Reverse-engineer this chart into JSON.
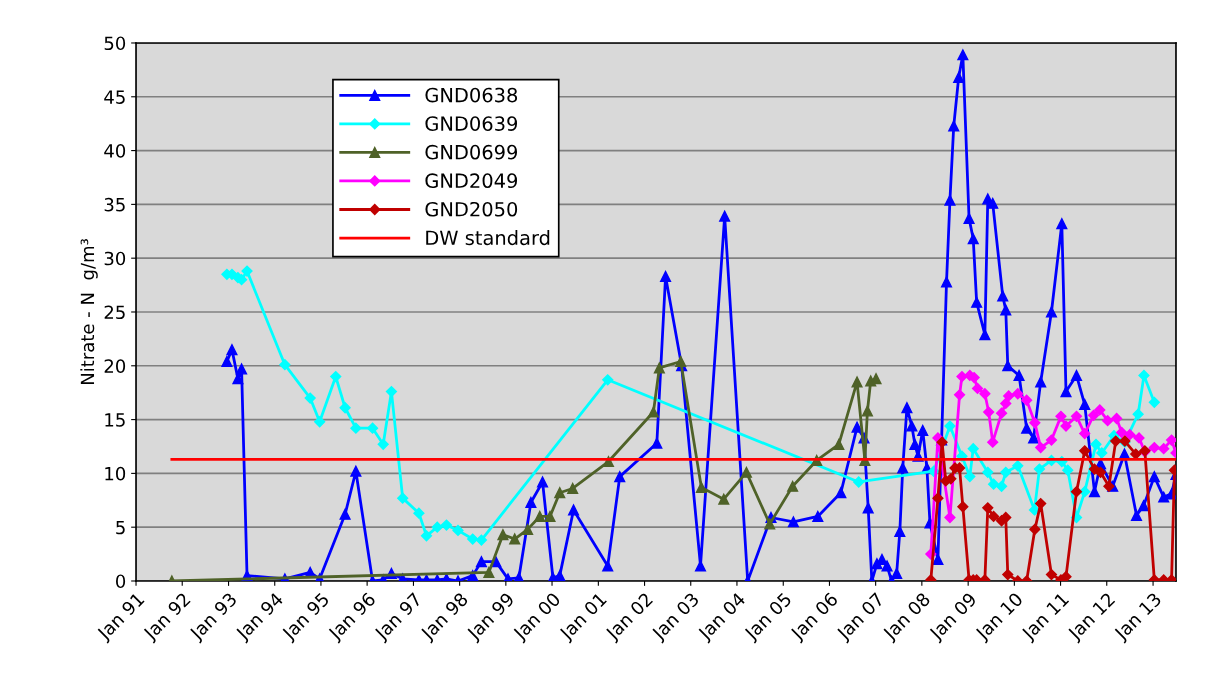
{
  "chart_data": {
    "type": "line",
    "ylabel": "Nitrate - N  g/m³",
    "xlim": [
      "1991-01-01",
      "2013-07-01"
    ],
    "ylim": [
      0,
      50
    ],
    "yticks": [
      0,
      5,
      10,
      15,
      20,
      25,
      30,
      35,
      40,
      45,
      50
    ],
    "xticks": [
      {
        "value": "1991-01-01",
        "label": "Jan 91"
      },
      {
        "value": "1992-01-01",
        "label": "Jan 92"
      },
      {
        "value": "1993-01-01",
        "label": "Jan 93"
      },
      {
        "value": "1994-01-01",
        "label": "Jan 94"
      },
      {
        "value": "1995-01-01",
        "label": "Jan 95"
      },
      {
        "value": "1996-01-01",
        "label": "Jan 96"
      },
      {
        "value": "1997-01-01",
        "label": "Jan 97"
      },
      {
        "value": "1998-01-01",
        "label": "Jan 98"
      },
      {
        "value": "1999-01-01",
        "label": "Jan 99"
      },
      {
        "value": "2000-01-01",
        "label": "Jan 00"
      },
      {
        "value": "2001-01-01",
        "label": "Jan 01"
      },
      {
        "value": "2002-01-01",
        "label": "Jan 02"
      },
      {
        "value": "2003-01-01",
        "label": "Jan 03"
      },
      {
        "value": "2004-01-01",
        "label": "Jan 04"
      },
      {
        "value": "2005-01-01",
        "label": "Jan 05"
      },
      {
        "value": "2006-01-01",
        "label": "Jan 06"
      },
      {
        "value": "2007-01-01",
        "label": "Jan 07"
      },
      {
        "value": "2008-01-01",
        "label": "Jan 08"
      },
      {
        "value": "2009-01-01",
        "label": "Jan 09"
      },
      {
        "value": "2010-01-01",
        "label": "Jan 10"
      },
      {
        "value": "2011-01-01",
        "label": "Jan 11"
      },
      {
        "value": "2012-01-01",
        "label": "Jan 12"
      },
      {
        "value": "2013-01-01",
        "label": "Jan 13"
      }
    ],
    "grid": "y",
    "legend": "top left",
    "line_style": "solid",
    "series": [
      {
        "name": "GND0638",
        "color": "#0000ff",
        "marker": "triangle",
        "x": [
          "1992-12-19",
          "1993-01-28",
          "1993-03-16",
          "1993-04-14",
          "1993-05-27",
          "1994-03-22",
          "1994-10-08",
          "1994-12-22",
          "1995-07-11",
          "1995-10-04",
          "1996-02-13",
          "1996-05-07",
          "1996-07-11",
          "1996-10-08",
          "1997-02-13",
          "1997-04-14",
          "1997-07-08",
          "1997-09-19",
          "1997-12-19",
          "1998-04-14",
          "1998-06-22",
          "1998-10-14",
          "1999-01-18",
          "1999-04-14",
          "1999-07-18",
          "1999-10-18",
          "2000-01-08",
          "2000-03-02",
          "2000-06-19",
          "2001-03-16",
          "2001-06-19",
          "2002-04-08",
          "2002-06-16",
          "2002-10-21",
          "2003-03-19",
          "2003-09-26",
          "2004-03-26",
          "2004-09-26",
          "2005-03-22",
          "2005-10-01",
          "2006-04-01",
          "2006-08-07",
          "2006-10-01",
          "2006-11-03",
          "2006-12-02",
          "2007-01-11",
          "2007-02-20",
          "2007-04-01",
          "2007-05-07",
          "2007-06-16",
          "2007-07-11",
          "2007-08-03",
          "2007-09-05",
          "2007-10-14",
          "2007-11-07",
          "2007-12-02",
          "2008-01-08",
          "2008-02-10",
          "2008-03-05",
          "2008-05-07",
          "2008-06-05",
          "2008-07-14",
          "2008-08-10",
          "2008-09-09",
          "2008-10-18",
          "2008-11-20",
          "2009-01-08",
          "2009-02-10",
          "2009-03-09",
          "2009-05-13",
          "2009-06-05",
          "2009-07-14",
          "2009-10-01",
          "2009-10-25",
          "2009-11-10",
          "2010-02-07",
          "2010-04-08",
          "2010-06-02",
          "2010-07-28",
          "2010-10-21",
          "2011-01-11",
          "2011-02-13",
          "2011-05-07",
          "2011-07-11",
          "2011-09-26",
          "2011-11-13",
          "2012-02-17",
          "2012-05-20",
          "2012-08-23",
          "2012-10-18",
          "2013-01-11",
          "2013-03-26",
          "2013-05-27",
          "2013-07-01"
        ],
        "values": [
          20.4,
          21.5,
          18.8,
          19.7,
          0.5,
          0.2,
          0.8,
          0.2,
          6.2,
          10.2,
          0,
          0.1,
          0.7,
          0.2,
          0.1,
          0.1,
          0.1,
          0.2,
          0,
          0.5,
          1.8,
          1.8,
          0.2,
          0.3,
          7.3,
          9.2,
          0.3,
          0.5,
          6.6,
          1.4,
          9.7,
          12.8,
          28.3,
          20.0,
          1.4,
          33.9,
          0,
          5.9,
          5.5,
          6.0,
          8.2,
          14.3,
          13.3,
          6.8,
          0,
          1.6,
          2.0,
          1.4,
          0,
          0.7,
          4.6,
          10.5,
          16.1,
          14.4,
          12.7,
          11.6,
          14.0,
          10.5,
          5.4,
          2.0,
          13.1,
          27.8,
          35.4,
          42.3,
          46.8,
          48.9,
          33.7,
          31.8,
          25.9,
          22.9,
          35.5,
          35.1,
          26.5,
          25.2,
          20.0,
          19.1,
          14.2,
          13.3,
          18.5,
          25.0,
          33.2,
          17.6,
          19.1,
          16.4,
          8.3,
          10.9,
          8.8,
          11.8,
          6.1,
          7.0,
          9.7,
          7.8,
          8.1,
          9.9
        ]
      },
      {
        "name": "GND0639",
        "color": "#00ffff",
        "marker": "diamond",
        "x": [
          "1992-12-19",
          "1993-01-28",
          "1993-03-16",
          "1993-04-14",
          "1993-05-27",
          "1994-03-22",
          "1994-10-08",
          "1994-12-22",
          "1995-04-28",
          "1995-07-11",
          "1995-10-04",
          "1996-02-13",
          "1996-05-07",
          "1996-07-11",
          "1996-10-08",
          "1997-02-13",
          "1997-04-14",
          "1997-07-08",
          "1997-09-19",
          "1997-12-19",
          "1998-04-14",
          "1998-06-22",
          "2001-03-16",
          "2006-08-20",
          "2008-04-04",
          "2008-08-10",
          "2008-11-13",
          "2009-01-14",
          "2009-02-10",
          "2009-06-05",
          "2009-07-21",
          "2009-09-22",
          "2009-10-25",
          "2010-01-28",
          "2010-06-09",
          "2010-07-18",
          "2010-10-21",
          "2011-01-11",
          "2011-02-27",
          "2011-05-07",
          "2011-07-11",
          "2011-10-08",
          "2011-11-23",
          "2012-02-27",
          "2012-05-23",
          "2012-09-05",
          "2012-10-21",
          "2013-01-11"
        ],
        "values": [
          28.5,
          28.5,
          28.2,
          28.0,
          28.8,
          20.1,
          17.0,
          14.8,
          19.0,
          16.1,
          14.2,
          14.2,
          12.7,
          17.6,
          7.7,
          6.3,
          4.2,
          5.0,
          5.2,
          4.7,
          3.9,
          3.8,
          18.7,
          9.2,
          10.2,
          14.4,
          11.6,
          9.7,
          12.3,
          10.1,
          9.0,
          8.8,
          10.1,
          10.7,
          6.6,
          10.4,
          11.2,
          11.1,
          10.3,
          5.9,
          8.3,
          12.7,
          11.9,
          13.5,
          12.9,
          15.5,
          19.1,
          16.6
        ]
      },
      {
        "name": "GND0699",
        "color": "#4f6228",
        "marker": "triangle",
        "x": [
          "1991-10-11",
          "1998-08-20",
          "1998-12-09",
          "1999-03-12",
          "1999-06-22",
          "1999-09-26",
          "1999-12-16",
          "2000-03-02",
          "2000-06-12",
          "2001-03-22",
          "2002-03-12",
          "2002-04-28",
          "2002-10-14",
          "2003-03-26",
          "2003-09-19",
          "2004-03-16",
          "2004-09-16",
          "2005-03-16",
          "2005-09-22",
          "2006-03-16",
          "2006-08-07",
          "2006-10-08",
          "2006-10-28",
          "2006-11-23",
          "2007-01-04"
        ],
        "values": [
          0,
          0.8,
          4.3,
          3.9,
          4.8,
          6.0,
          6.0,
          8.2,
          8.6,
          11.1,
          15.7,
          19.8,
          20.4,
          8.7,
          7.6,
          10.1,
          5.3,
          8.8,
          11.2,
          12.7,
          18.5,
          11.2,
          15.8,
          18.6,
          18.8
        ]
      },
      {
        "name": "GND2049",
        "color": "#ff00ff",
        "marker": "diamond",
        "x": [
          "2008-03-12",
          "2008-05-07",
          "2008-08-10",
          "2008-10-25",
          "2008-11-13",
          "2009-01-14",
          "2009-02-17",
          "2009-03-16",
          "2009-05-13",
          "2009-06-12",
          "2009-07-14",
          "2009-09-22",
          "2009-10-25",
          "2009-11-17",
          "2010-01-28",
          "2010-04-08",
          "2010-06-12",
          "2010-07-28",
          "2010-10-21",
          "2011-01-04",
          "2011-02-13",
          "2011-05-07",
          "2011-07-11",
          "2011-09-19",
          "2011-11-07",
          "2012-01-08",
          "2012-03-19",
          "2012-04-28",
          "2012-07-01",
          "2012-09-12",
          "2012-10-28",
          "2013-01-11",
          "2013-03-26",
          "2013-05-27",
          "2013-07-01"
        ],
        "values": [
          2.5,
          13.3,
          5.9,
          17.3,
          19.0,
          19.1,
          18.9,
          17.9,
          17.4,
          15.7,
          12.9,
          15.6,
          16.5,
          17.2,
          17.4,
          16.8,
          14.7,
          12.4,
          13.1,
          15.3,
          14.4,
          15.3,
          13.7,
          15.4,
          15.9,
          14.9,
          15.1,
          13.8,
          13.6,
          13.3,
          12.0,
          12.4,
          12.3,
          13.1,
          11.9
        ]
      },
      {
        "name": "GND2050",
        "color": "#c00000",
        "marker": "diamond",
        "x": [
          "2008-03-12",
          "2008-05-07",
          "2008-06-09",
          "2008-07-08",
          "2008-08-17",
          "2008-09-19",
          "2008-10-25",
          "2008-11-20",
          "2009-01-08",
          "2009-02-10",
          "2009-03-09",
          "2009-05-13",
          "2009-06-05",
          "2009-07-21",
          "2009-09-22",
          "2009-10-25",
          "2009-11-10",
          "2010-01-28",
          "2010-04-08",
          "2010-06-12",
          "2010-07-28",
          "2010-10-21",
          "2011-01-04",
          "2011-02-13",
          "2011-05-07",
          "2011-07-11",
          "2011-09-26",
          "2011-11-13",
          "2012-01-18",
          "2012-03-12",
          "2012-05-23",
          "2012-08-17",
          "2012-10-28",
          "2013-01-11",
          "2013-03-26",
          "2013-05-27",
          "2013-06-19"
        ],
        "values": [
          0.1,
          7.7,
          12.9,
          9.3,
          9.5,
          10.5,
          10.5,
          6.9,
          0.1,
          0.1,
          0.1,
          0.1,
          6.8,
          6.0,
          5.6,
          5.9,
          0.6,
          0,
          0,
          4.8,
          7.2,
          0.6,
          0.1,
          0.4,
          8.3,
          12.1,
          10.4,
          10.1,
          8.8,
          13.0,
          13.0,
          11.8,
          12.1,
          0.1,
          0.1,
          0.1,
          10.3
        ]
      },
      {
        "name": "DW standard",
        "color": "#ff0000",
        "marker": "none",
        "x": [
          "1991-10-11",
          "2013-07-01"
        ],
        "values": [
          11.3,
          11.3
        ]
      }
    ]
  }
}
